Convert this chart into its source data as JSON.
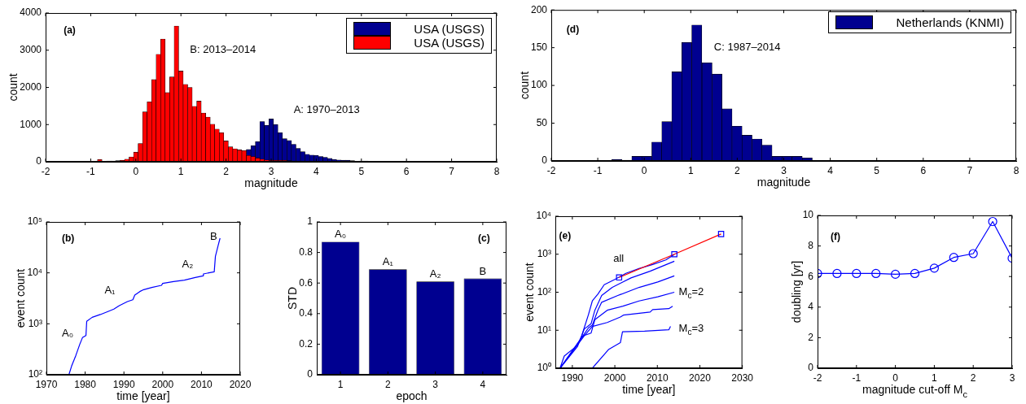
{
  "chart_data": [
    {
      "type": "histogram",
      "bins": [
        -0.85,
        -0.75,
        -0.65,
        -0.55,
        -0.45,
        -0.35,
        -0.25,
        -0.15,
        -0.05,
        0.05,
        0.15,
        0.25,
        0.35,
        0.45,
        0.55,
        0.65,
        0.75,
        0.85,
        0.95,
        1.05,
        1.15,
        1.25,
        1.35,
        1.45,
        1.55,
        1.65,
        1.75,
        1.85,
        1.95,
        2.05,
        2.15,
        2.25,
        2.35,
        2.45,
        2.55,
        2.65,
        2.75,
        2.85,
        2.95,
        3.05,
        3.15,
        3.25,
        3.35,
        3.45,
        3.55,
        3.65,
        3.75,
        3.85,
        3.95,
        4.05,
        4.15,
        4.25,
        4.35,
        4.45,
        4.55,
        4.65,
        4.75,
        4.85,
        4.95,
        5.05,
        5.15,
        5.25,
        5.35,
        5.45,
        5.55,
        5.65,
        5.75,
        5.85,
        5.95,
        6.05,
        6.15,
        6.25,
        6.35,
        6.45,
        6.55,
        6.65,
        6.75,
        6.85,
        6.95,
        7.05,
        7.15,
        7.25
      ],
      "series": [
        {
          "name": "USA (USGS)",
          "color": "#000090",
          "values": [
            null,
            null,
            null,
            null,
            null,
            null,
            null,
            null,
            null,
            null,
            null,
            null,
            null,
            null,
            null,
            null,
            null,
            null,
            null,
            null,
            null,
            null,
            null,
            null,
            null,
            null,
            null,
            null,
            null,
            null,
            null,
            null,
            null,
            330,
            430,
            540,
            1080,
            980,
            1150,
            1000,
            780,
            620,
            570,
            470,
            360,
            270,
            200,
            180,
            170,
            140,
            120,
            90,
            60,
            50,
            40,
            40,
            30,
            10,
            20,
            20,
            10,
            10,
            10,
            10,
            10,
            10,
            10,
            10,
            10,
            10,
            10,
            10,
            10,
            10,
            10,
            10,
            10,
            10,
            10,
            10,
            10
          ]
        },
        {
          "name": "USA (USGS)",
          "color": "#ff0000",
          "values": [
            60,
            10,
            20,
            20,
            30,
            40,
            70,
            130,
            260,
            490,
            1340,
            1610,
            2210,
            2890,
            3300,
            1860,
            2280,
            3650,
            2440,
            2080,
            2000,
            1490,
            1630,
            1310,
            1200,
            1010,
            880,
            780,
            560,
            400,
            350,
            320,
            300,
            170,
            140,
            100,
            70,
            50,
            40,
            40,
            40,
            40,
            30,
            20,
            10,
            0,
            0,
            0,
            0,
            0,
            0,
            0,
            0,
            0,
            0,
            0,
            0,
            0,
            0,
            0,
            0,
            0,
            0,
            0,
            0,
            0,
            0,
            0,
            0,
            0,
            0,
            0,
            0,
            0,
            0,
            0,
            0,
            0,
            0,
            0,
            0
          ]
        }
      ],
      "xlabel": "magnitude",
      "ylabel": "count",
      "xlim": [
        -2,
        8
      ],
      "xticks": [
        -2,
        -1,
        0,
        1,
        2,
        3,
        4,
        5,
        6,
        7,
        8
      ],
      "ylim": [
        0,
        4000
      ],
      "yticks": [
        0,
        1000,
        2000,
        3000,
        4000
      ],
      "legend": "top right",
      "annotations": [
        "(a)",
        "B: 2013–2014",
        "A: 1970–2013"
      ]
    },
    {
      "type": "histogram",
      "bins": [
        -0.7,
        -0.48,
        -0.27,
        -0.05,
        0.16,
        0.38,
        0.59,
        0.81,
        1.02,
        1.24,
        1.46,
        1.67,
        1.89,
        2.1,
        2.32,
        2.53,
        2.75,
        2.96,
        3.18,
        3.4,
        3.61
      ],
      "series": [
        {
          "name": "Netherlands (KNMI)",
          "color": "#000090",
          "values": [
            2,
            1,
            6,
            6,
            25,
            52,
            118,
            157,
            180,
            130,
            115,
            69,
            46,
            34,
            29,
            21,
            6,
            6,
            6,
            4
          ]
        }
      ],
      "xlabel": "magnitude",
      "ylabel": "count",
      "xlim": [
        -2,
        8
      ],
      "xticks": [
        -2,
        -1,
        0,
        1,
        2,
        3,
        4,
        5,
        6,
        7,
        8
      ],
      "ylim": [
        0,
        200
      ],
      "yticks": [
        0,
        50,
        100,
        150,
        200
      ],
      "legend": "top right",
      "annotations": [
        "(d)",
        "C: 1987–2014"
      ]
    },
    {
      "type": "line",
      "x": [
        1975.8,
        1976.5,
        1977.6,
        1978.6,
        1979.3,
        1980.2,
        1980.4,
        1981.8,
        1983.9,
        1986,
        1987.4,
        1988.8,
        1990.9,
        1992.3,
        1992.8,
        1994.1,
        1995.1,
        1997.2,
        1999.7,
        2000,
        2002.8,
        2005.6,
        2008.4,
        2010.4,
        2010.5,
        2013.3,
        2013.6,
        2014.3,
        2014.8
      ],
      "series": [
        {
          "color": "#0000ff",
          "values": [
            100,
            148,
            240,
            395,
            535,
            590,
            1120,
            1340,
            1520,
            1760,
            1940,
            2270,
            2730,
            2970,
            3660,
            4300,
            4680,
            5160,
            5690,
            6200,
            6760,
            7180,
            8120,
            8740,
            9520,
            10500,
            21100,
            34400,
            48000
          ]
        }
      ],
      "xlabel": "time [year]",
      "ylabel": "event count",
      "xlim": [
        1970,
        2020
      ],
      "xticks": [
        1970,
        1980,
        1990,
        2000,
        2010,
        2020
      ],
      "log": true,
      "ylim": [
        100,
        100000
      ],
      "yticks": [
        {
          "value": 100,
          "label": "10²"
        },
        {
          "value": 1000,
          "label": "10³"
        },
        {
          "value": 10000,
          "label": "10⁴"
        },
        {
          "value": 100000,
          "label": "10⁵"
        }
      ],
      "annotations": [
        "(b)",
        "A₀",
        "A₁",
        "A₂",
        "B"
      ]
    },
    {
      "type": "bar",
      "categories": [
        "1",
        "2",
        "3",
        "4"
      ],
      "values": [
        0.87,
        0.69,
        0.61,
        0.63
      ],
      "color": "#000090",
      "xlabel": "epoch",
      "ylabel": "STD",
      "ylim": [
        0,
        1
      ],
      "yticks": [
        0,
        0.2,
        0.4,
        0.6,
        0.8,
        1
      ],
      "annotations": [
        "(c)",
        {
          "text": "A₀",
          "x": "1",
          "y": 0.87
        },
        {
          "text": "A₁",
          "x": "2",
          "y": 0.69
        },
        {
          "text": "A₂",
          "x": "3",
          "y": 0.61
        },
        {
          "text": "B",
          "x": "4",
          "y": 0.63
        }
      ]
    },
    {
      "type": "line",
      "series": [
        {
          "color": "#0000ff",
          "x": [
            1987.1,
            1988.1,
            1991.2,
            1992.2,
            1992.8,
            1993.8,
            1994.7,
            1996,
            1997.5,
            2000.1,
            2002.6,
            2005.7,
            2008.9,
            2012,
            2014
          ],
          "values": [
            1,
            2.1,
            4,
            7.1,
            11.6,
            26,
            59,
            89,
            158,
            219,
            314,
            421,
            537,
            710,
            984
          ]
        },
        {
          "color": "#0000ff",
          "x": [
            1987.1,
            1991.2,
            1992.8,
            1994.4,
            1995.3,
            1996.9,
            1999.4,
            2003.8,
            2008.3,
            2014
          ],
          "values": [
            1,
            3.7,
            10.7,
            14.8,
            33.5,
            82,
            134,
            238,
            357,
            655
          ]
        },
        {
          "color": "#0000ff",
          "x": [
            1987.1,
            1992.5,
            1993.8,
            1994.7,
            1996,
            1996.9,
            2000.7,
            2005.7,
            2010.1,
            2014
          ],
          "values": [
            1,
            7.1,
            11.6,
            13.6,
            33.5,
            54.5,
            82,
            134,
            186,
            270
          ]
        },
        {
          "color": "#0000ff",
          "x": [
            1987.1,
            1992.5,
            1994.4,
            1995.3,
            1998.2,
            2001.9,
            2005.7,
            2010.1,
            2014
          ],
          "values": [
            1,
            7.1,
            8.4,
            18.9,
            33.5,
            43,
            59,
            76,
            100
          ]
        },
        {
          "color": "#0000ff",
          "x": [
            1987.1,
            1992.8,
            1994.7,
            1998.2,
            2001.3,
            2002,
            2008.3,
            2008.9,
            2012.7,
            2013.6
          ],
          "values": [
            1,
            7.1,
            12.6,
            16,
            22.3,
            25,
            30,
            35,
            37,
            43
          ]
        },
        {
          "color": "#0000ff",
          "x": [
            1994.7,
            1998.5,
            2001.3,
            2001.8,
            2007,
            2012.7,
            2013.1
          ],
          "values": [
            1,
            3.1,
            4.7,
            9.1,
            9.5,
            10.3,
            12.6
          ]
        },
        {
          "color": "#ff0000",
          "x": [
            2001,
            2014,
            2025
          ],
          "values": [
            245,
            1000,
            3400
          ]
        },
        {
          "type": "scatter",
          "marker": "square",
          "color": "#0000ff",
          "x": [
            2001,
            2014,
            2025
          ],
          "values": [
            245,
            1000,
            3400
          ]
        }
      ],
      "xlabel": "time [year]",
      "ylabel": "event count",
      "xlim": [
        1986,
        2030
      ],
      "xticks": [
        1990,
        2000,
        2010,
        2020,
        2030
      ],
      "log": true,
      "ylim": [
        1,
        10000
      ],
      "yticks": [
        {
          "value": 1,
          "label": "10⁰"
        },
        {
          "value": 10,
          "label": "10¹"
        },
        {
          "value": 100,
          "label": "10²"
        },
        {
          "value": 1000,
          "label": "10³"
        },
        {
          "value": 10000,
          "label": "10⁴"
        }
      ],
      "annotations": [
        "(e)",
        "all",
        "M$_{c}$=2",
        "M$_{c}$=3"
      ]
    },
    {
      "type": "line",
      "x": [
        -2,
        -1.5,
        -1,
        -0.5,
        0,
        0.5,
        1,
        1.5,
        2,
        2.5,
        3
      ],
      "series": [
        {
          "color": "#0000ff",
          "values": [
            6.2,
            6.2,
            6.2,
            6.2,
            6.15,
            6.2,
            6.55,
            7.25,
            7.5,
            9.6,
            7.2
          ]
        }
      ],
      "marker": "circle",
      "xlabel": "magnitude cut-off M$_{c}$",
      "ylabel": "doubling [yr]",
      "xlim": [
        -2,
        3
      ],
      "xticks": [
        -2,
        -1,
        0,
        1,
        2,
        3
      ],
      "ylim": [
        0,
        10
      ],
      "yticks": [
        0,
        2,
        4,
        6,
        8,
        10
      ],
      "annotations": [
        "(f)"
      ]
    }
  ]
}
